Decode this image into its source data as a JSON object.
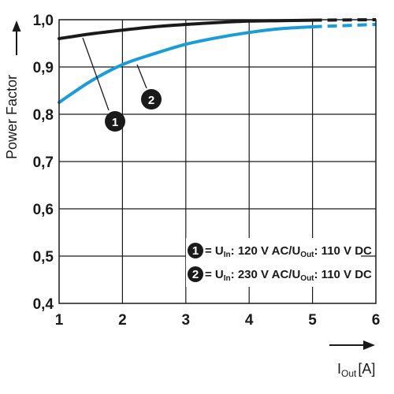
{
  "chart_data": {
    "type": "line",
    "ylabel": "Power Factor",
    "xlabel_main": "I",
    "xlabel_sub": "Out",
    "xlabel_unit": "[A]",
    "xlim": [
      1,
      6
    ],
    "ylim": [
      0.4,
      1.0
    ],
    "x_ticks": [
      "1",
      "2",
      "3",
      "4",
      "5",
      "6"
    ],
    "y_ticks": [
      "0,4",
      "0,5",
      "0,6",
      "0,7",
      "0,8",
      "0,9",
      "1,0"
    ],
    "grid": true,
    "series": [
      {
        "name": "1",
        "color": "#1a1a1a",
        "x": [
          1,
          1.5,
          2,
          2.5,
          3,
          3.5,
          4,
          4.5,
          5
        ],
        "y": [
          0.96,
          0.97,
          0.978,
          0.985,
          0.99,
          0.994,
          0.997,
          0.998,
          0.999
        ],
        "extrapolated": {
          "x": [
            5,
            6
          ],
          "y": [
            0.999,
            1.0
          ]
        },
        "label": "1"
      },
      {
        "name": "2",
        "color": "#1a9cd8",
        "x": [
          1,
          1.5,
          2,
          2.5,
          3,
          3.5,
          4,
          4.5,
          5
        ],
        "y": [
          0.825,
          0.87,
          0.905,
          0.928,
          0.948,
          0.962,
          0.973,
          0.981,
          0.985
        ],
        "extrapolated": {
          "x": [
            5,
            6
          ],
          "y": [
            0.985,
            0.99
          ]
        },
        "label": "2"
      }
    ],
    "legend": {
      "placement": "bottom-right",
      "entries": [
        {
          "badge": "1",
          "text_a": "= U",
          "sub_a": "In",
          "text_b": ": 120 V AC/U",
          "sub_b": "Out",
          "text_c": ": 110 V DC"
        },
        {
          "badge": "2",
          "text_a": "= U",
          "sub_a": "In",
          "text_b": ": 230 V AC/U",
          "sub_b": "Out",
          "text_c": ": 110 V DC"
        }
      ]
    },
    "annotations": [
      {
        "label": "1",
        "points_to_series": "1"
      },
      {
        "label": "2",
        "points_to_series": "2"
      }
    ]
  }
}
